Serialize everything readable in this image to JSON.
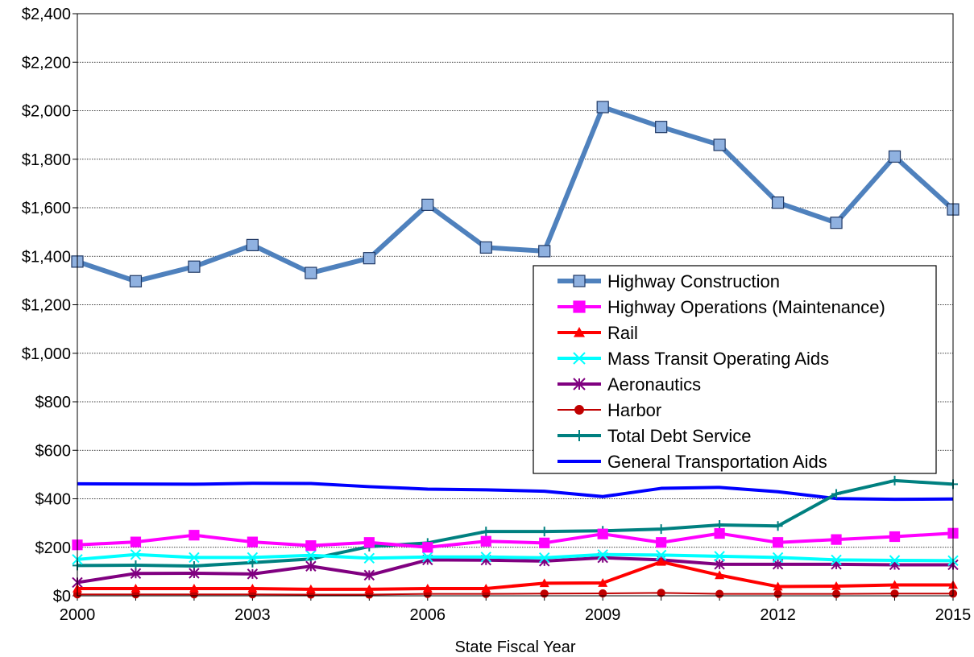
{
  "chart_data": {
    "type": "line",
    "title": "",
    "xlabel": "State Fiscal Year",
    "ylabel": "",
    "x": [
      2000,
      2001,
      2002,
      2003,
      2004,
      2005,
      2006,
      2007,
      2008,
      2009,
      2010,
      2011,
      2012,
      2013,
      2014,
      2015
    ],
    "x_tick_labels": [
      "2000",
      "2003",
      "2006",
      "2009",
      "2012",
      "2015"
    ],
    "y_tick_labels": [
      "$0",
      "$200",
      "$400",
      "$600",
      "$800",
      "$1,000",
      "$1,200",
      "$1,400",
      "$1,600",
      "$1,800",
      "$2,000",
      "$2,200",
      "$2,400"
    ],
    "ylim": [
      0,
      2400
    ],
    "xlim": [
      2000,
      2015
    ],
    "grid": "horizontal",
    "legend_position": "center-right",
    "series": [
      {
        "name": "Highway Construction",
        "color": "#4F81BD",
        "marker": "square",
        "values": [
          1378,
          1297,
          1357,
          1446,
          1331,
          1392,
          1612,
          1436,
          1421,
          2015,
          1933,
          1859,
          1621,
          1538,
          1811,
          1593
        ]
      },
      {
        "name": "Highway Operations (Maintenance)",
        "color": "#FF00FF",
        "marker": "square",
        "values": [
          210,
          222,
          250,
          222,
          207,
          220,
          200,
          225,
          218,
          255,
          220,
          257,
          220,
          232,
          244,
          258
        ]
      },
      {
        "name": "Rail",
        "color": "#FF0000",
        "marker": "triangle",
        "values": [
          30,
          30,
          30,
          30,
          27,
          27,
          30,
          30,
          52,
          53,
          140,
          85,
          38,
          40,
          45,
          45
        ]
      },
      {
        "name": "Mass Transit Operating Aids",
        "color": "#00FFFF",
        "marker": "x",
        "values": [
          150,
          170,
          158,
          158,
          167,
          155,
          160,
          160,
          157,
          170,
          168,
          163,
          158,
          148,
          146,
          145
        ]
      },
      {
        "name": "Aeronautics",
        "color": "#800080",
        "marker": "star",
        "values": [
          55,
          92,
          93,
          90,
          122,
          85,
          148,
          147,
          143,
          157,
          148,
          130,
          130,
          130,
          128,
          128
        ]
      },
      {
        "name": "Harbor",
        "color": "#C00000",
        "marker": "circle",
        "values": [
          6,
          6,
          6,
          6,
          5,
          5,
          8,
          8,
          9,
          10,
          12,
          8,
          8,
          8,
          9,
          9
        ]
      },
      {
        "name": "Total Debt Service",
        "color": "#008080",
        "marker": "plus",
        "values": [
          125,
          126,
          123,
          137,
          152,
          203,
          218,
          265,
          265,
          268,
          275,
          292,
          288,
          420,
          475,
          460
        ]
      },
      {
        "name": "General Transportation Aids",
        "color": "#0000FF",
        "marker": "none",
        "values": [
          462,
          461,
          460,
          464,
          463,
          450,
          440,
          437,
          431,
          409,
          443,
          447,
          429,
          401,
          398,
          399
        ]
      }
    ]
  }
}
